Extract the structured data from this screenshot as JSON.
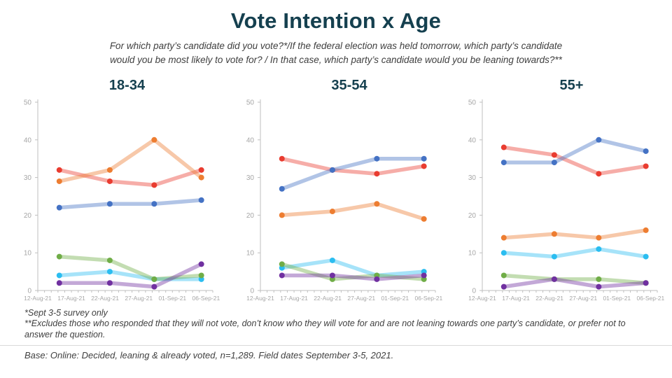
{
  "title": "Vote Intention x Age",
  "subtitle_lines": [
    "For which party’s candidate did you vote?*/If the federal election was held tomorrow, which party’s candidate",
    "would you be most likely to vote for? / In that case, which party’s candidate would you be leaning towards?**"
  ],
  "footnotes": {
    "note1": "*Sept 3-5 survey only",
    "note2": "**Excludes those who responded that they will not vote, don’t know who they will vote for and are not leaning towards one party’s candidate, or prefer not to answer the question."
  },
  "base_note": "Base: Online: Decided, leaning & already voted, n=1,289. Field dates September 3-5, 2021.",
  "colors": {
    "title": "#15404f",
    "text": "#3f3f3f",
    "axis": "#bfbfbf",
    "axis_label": "#a6a6a6"
  },
  "chart_data": [
    {
      "type": "line",
      "title": "18-34",
      "ylim": [
        0,
        50
      ],
      "yticks": [
        0,
        10,
        20,
        30,
        40,
        50
      ],
      "grid": false,
      "legend": "none",
      "x_tick_labels": [
        "12-Aug-21",
        "17-Aug-21",
        "22-Aug-21",
        "27-Aug-21",
        "01-Sep-21",
        "06-Sep-21"
      ],
      "label_day_positions": [
        0,
        5,
        10,
        15,
        20,
        25
      ],
      "axis_days": 26,
      "point_day_positions": [
        3.2,
        10.7,
        17.3,
        24.3
      ],
      "series": [
        {
          "name": "red",
          "color": "#e93c30",
          "values": [
            32,
            29,
            28,
            32
          ]
        },
        {
          "name": "orange",
          "color": "#ed7d31",
          "values": [
            29,
            32,
            40,
            30
          ]
        },
        {
          "name": "blue",
          "color": "#4472c4",
          "values": [
            22,
            23,
            23,
            24
          ]
        },
        {
          "name": "cyan",
          "color": "#2bbdf0",
          "values": [
            4,
            5,
            3,
            3
          ]
        },
        {
          "name": "green",
          "color": "#70ad47",
          "values": [
            9,
            8,
            3,
            4
          ]
        },
        {
          "name": "purple",
          "color": "#7030a0",
          "values": [
            2,
            2,
            1,
            7
          ]
        }
      ]
    },
    {
      "type": "line",
      "title": "35-54",
      "ylim": [
        0,
        50
      ],
      "yticks": [
        0,
        10,
        20,
        30,
        40,
        50
      ],
      "grid": false,
      "legend": "none",
      "x_tick_labels": [
        "12-Aug-21",
        "17-Aug-21",
        "22-Aug-21",
        "27-Aug-21",
        "01-Sep-21",
        "06-Sep-21"
      ],
      "label_day_positions": [
        0,
        5,
        10,
        15,
        20,
        25
      ],
      "axis_days": 26,
      "point_day_positions": [
        3.2,
        10.7,
        17.3,
        24.3
      ],
      "series": [
        {
          "name": "red",
          "color": "#e93c30",
          "values": [
            35,
            32,
            31,
            33
          ]
        },
        {
          "name": "orange",
          "color": "#ed7d31",
          "values": [
            20,
            21,
            23,
            19
          ]
        },
        {
          "name": "blue",
          "color": "#4472c4",
          "values": [
            27,
            32,
            35,
            35
          ]
        },
        {
          "name": "cyan",
          "color": "#2bbdf0",
          "values": [
            6,
            8,
            4,
            5
          ]
        },
        {
          "name": "green",
          "color": "#70ad47",
          "values": [
            7,
            3,
            4,
            3
          ]
        },
        {
          "name": "purple",
          "color": "#7030a0",
          "values": [
            4,
            4,
            3,
            4
          ]
        }
      ]
    },
    {
      "type": "line",
      "title": "55+",
      "ylim": [
        0,
        50
      ],
      "yticks": [
        0,
        10,
        20,
        30,
        40,
        50
      ],
      "grid": false,
      "legend": "none",
      "x_tick_labels": [
        "12-Aug-21",
        "17-Aug-21",
        "22-Aug-21",
        "27-Aug-21",
        "01-Sep-21",
        "06-Sep-21"
      ],
      "label_day_positions": [
        0,
        5,
        10,
        15,
        20,
        25
      ],
      "axis_days": 26,
      "point_day_positions": [
        3.2,
        10.7,
        17.3,
        24.3
      ],
      "series": [
        {
          "name": "red",
          "color": "#e93c30",
          "values": [
            38,
            36,
            31,
            33
          ]
        },
        {
          "name": "orange",
          "color": "#ed7d31",
          "values": [
            14,
            15,
            14,
            16
          ]
        },
        {
          "name": "blue",
          "color": "#4472c4",
          "values": [
            34,
            34,
            40,
            37
          ]
        },
        {
          "name": "cyan",
          "color": "#2bbdf0",
          "values": [
            10,
            9,
            11,
            9
          ]
        },
        {
          "name": "green",
          "color": "#70ad47",
          "values": [
            4,
            3,
            3,
            2
          ]
        },
        {
          "name": "purple",
          "color": "#7030a0",
          "values": [
            1,
            3,
            1,
            2
          ]
        }
      ]
    }
  ]
}
